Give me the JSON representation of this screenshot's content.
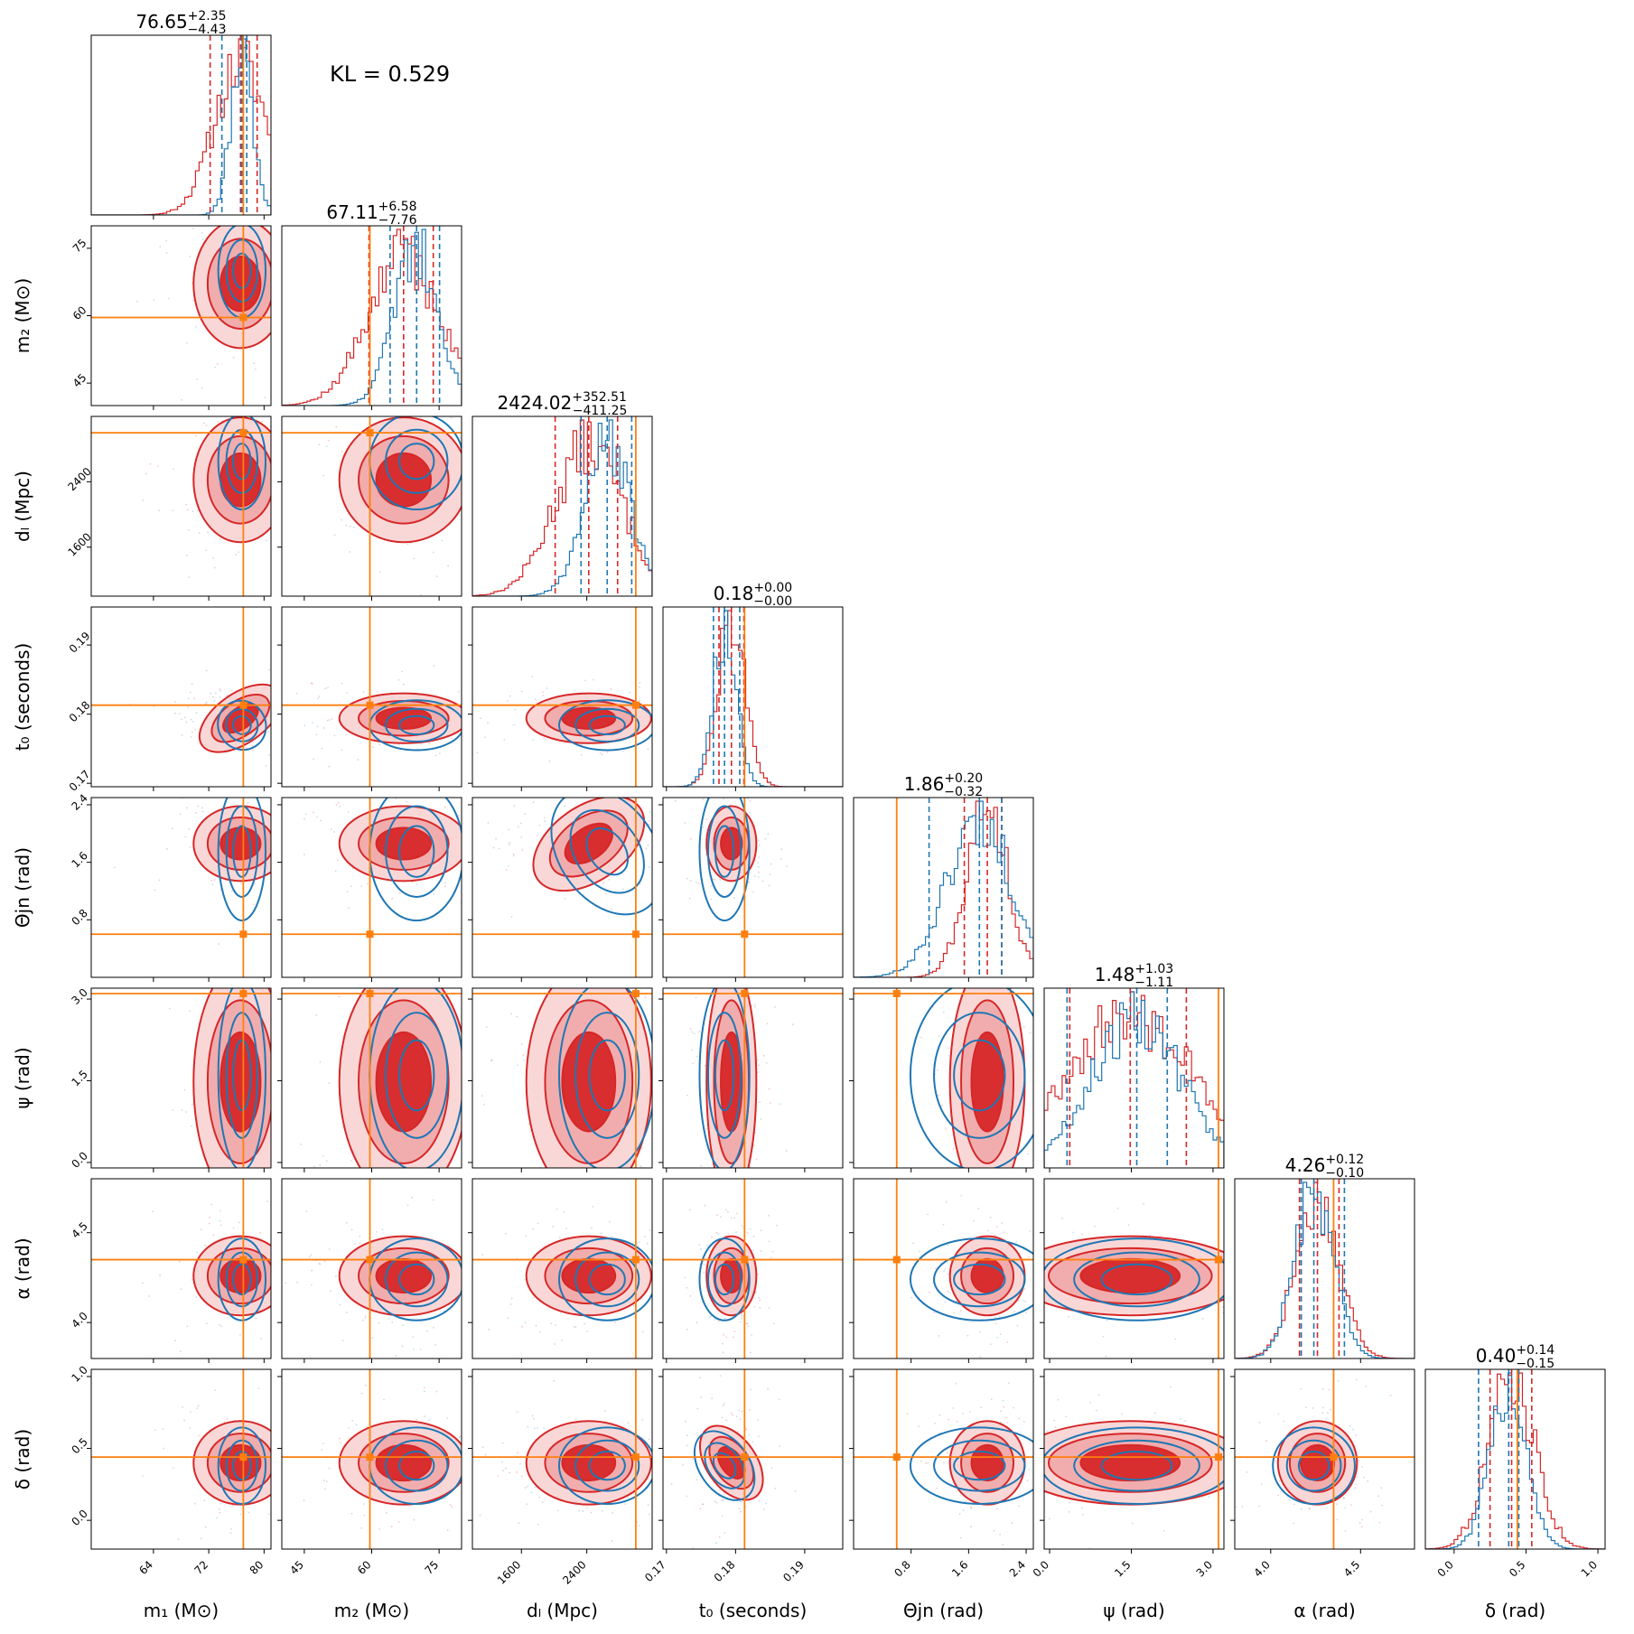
{
  "kl_text": "KL = 0.529",
  "colors": {
    "red": "#d62728",
    "red_light": "#f0a8a8",
    "blue": "#1f77b4",
    "orange": "#ff7f0e"
  },
  "chart_data": {
    "type": "corner",
    "parameters": [
      {
        "id": "m1",
        "label": "m₁ (M⊙)",
        "range": [
          55,
          81
        ],
        "ticks": [
          64,
          72,
          80
        ],
        "truth": 77.0,
        "title_value": "76.65",
        "title_plus": "+2.35",
        "title_minus": "−4.43",
        "red_quantiles": [
          72.2,
          76.6,
          79.0
        ],
        "blue_quantiles": [
          73.9,
          76.8,
          77.5
        ]
      },
      {
        "id": "m2",
        "label": "m₂ (M⊙)",
        "range": [
          40,
          80
        ],
        "ticks": [
          45,
          60,
          75
        ],
        "truth": 59.6,
        "title_value": "67.11",
        "title_plus": "+6.58",
        "title_minus": "−7.76",
        "red_quantiles": [
          59.4,
          67.1,
          73.7
        ],
        "blue_quantiles": [
          64.1,
          70.0,
          75.1
        ]
      },
      {
        "id": "dl",
        "label": "dₗ (Mpc)",
        "range": [
          1000,
          3200
        ],
        "ticks": [
          1600,
          2400
        ],
        "truth": 3000,
        "title_value": "2424.02",
        "title_plus": "+352.51",
        "title_minus": "−411.25",
        "red_quantiles": [
          2013,
          2424,
          2777
        ],
        "blue_quantiles": [
          2330,
          2650,
          2950
        ]
      },
      {
        "id": "t0",
        "label": "t₀ (seconds)",
        "range": [
          0.1695,
          0.1955
        ],
        "ticks": [
          0.17,
          0.18,
          0.19
        ],
        "truth": 0.1813,
        "title_value": "0.18",
        "title_plus": "+0.00",
        "title_minus": "−0.00",
        "red_quantiles": [
          0.1776,
          0.1794,
          0.1812
        ],
        "blue_quantiles": [
          0.1768,
          0.1784,
          0.1806
        ]
      },
      {
        "id": "theta",
        "label": "Θjn (rad)",
        "range": [
          0.0,
          2.5
        ],
        "ticks": [
          0.8,
          1.6,
          2.4
        ],
        "truth": 0.6,
        "title_value": "1.86",
        "title_plus": "+0.20",
        "title_minus": "−0.32",
        "red_quantiles": [
          1.54,
          1.86,
          2.06
        ],
        "blue_quantiles": [
          1.05,
          1.75,
          2.06
        ]
      },
      {
        "id": "psi",
        "label": "ψ (rad)",
        "range": [
          -0.1,
          3.2
        ],
        "ticks": [
          0.0,
          1.5,
          3.0
        ],
        "truth": 3.1,
        "title_value": "1.48",
        "title_plus": "+1.03",
        "title_minus": "−1.11",
        "red_quantiles": [
          0.37,
          1.48,
          2.51
        ],
        "blue_quantiles": [
          0.32,
          1.6,
          2.16
        ]
      },
      {
        "id": "alpha",
        "label": "α (rad)",
        "range": [
          3.8,
          4.8
        ],
        "ticks": [
          4.0,
          4.5
        ],
        "truth": 4.35,
        "title_value": "4.26",
        "title_plus": "+0.12",
        "title_minus": "−0.10",
        "red_quantiles": [
          4.16,
          4.26,
          4.38
        ],
        "blue_quantiles": [
          4.17,
          4.24,
          4.41
        ]
      },
      {
        "id": "delta",
        "label": "δ (rad)",
        "range": [
          -0.2,
          1.05
        ],
        "ticks": [
          0.0,
          0.5,
          1.0
        ],
        "truth": 0.44,
        "title_value": "0.40",
        "title_plus": "+0.14",
        "title_minus": "−0.15",
        "red_quantiles": [
          0.25,
          0.4,
          0.54
        ],
        "blue_quantiles": [
          0.17,
          0.38,
          0.45
        ]
      }
    ],
    "tick_labels": {
      "m1": [
        "64",
        "72",
        "80"
      ],
      "m2": [
        "45",
        "60",
        "75"
      ],
      "dl": [
        "1600",
        "2400"
      ],
      "t0": [
        "0.17",
        "0.18",
        "0.19"
      ],
      "theta": [
        "0.8",
        "1.6",
        "2.4"
      ],
      "psi": [
        "0.0",
        "1.5",
        "3.0"
      ],
      "alpha": [
        "4.0",
        "4.5"
      ],
      "delta": [
        "0.0",
        "0.5",
        "1.0"
      ]
    },
    "series": [
      {
        "name": "",
        "color": "#d62728",
        "style": "filled contours + step histogram"
      },
      {
        "name": "",
        "color": "#1f77b4",
        "style": "contour lines + step histogram"
      }
    ]
  }
}
